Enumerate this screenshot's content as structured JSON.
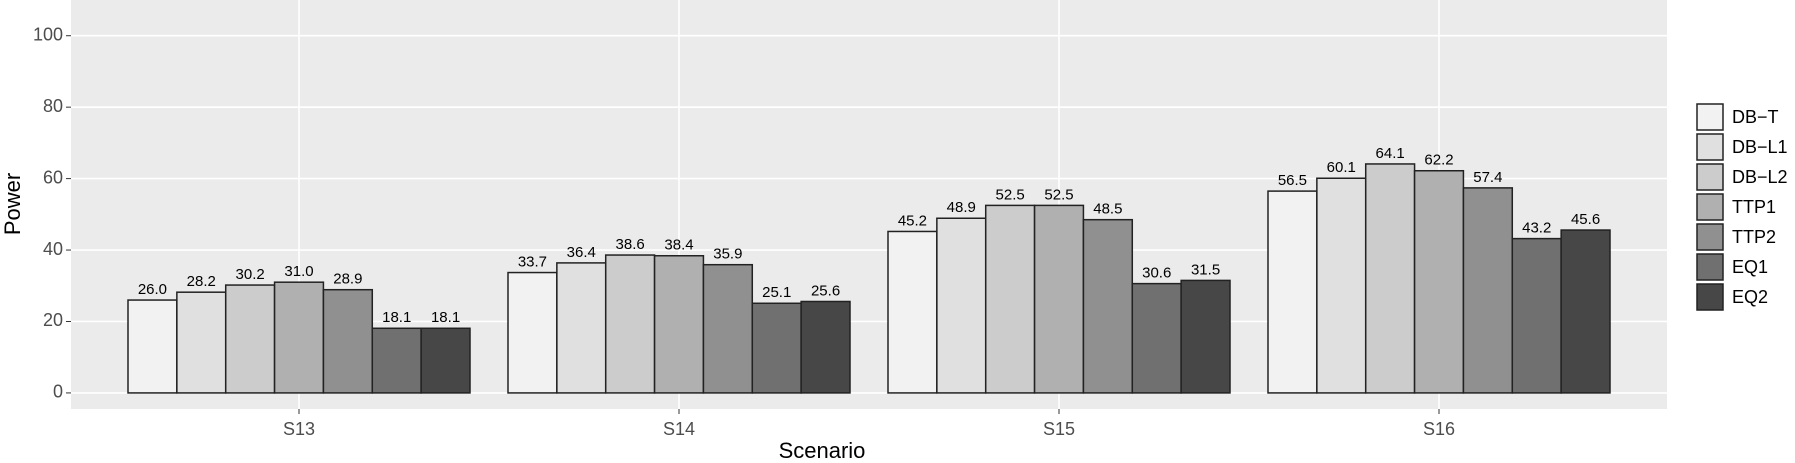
{
  "chart_data": {
    "type": "bar",
    "x_label": "Scenario",
    "y_label": "Power",
    "categories": [
      "S13",
      "S14",
      "S15",
      "S16"
    ],
    "series": [
      {
        "name": "DB−T",
        "color": "#f2f2f2",
        "values": [
          26.0,
          33.7,
          45.2,
          56.5
        ],
        "value_labels": [
          "26.0",
          "33.7",
          "45.2",
          "56.5"
        ]
      },
      {
        "name": "DB−L1",
        "color": "#e0e0e0",
        "values": [
          28.2,
          36.4,
          48.9,
          60.1
        ],
        "value_labels": [
          "28.2",
          "36.4",
          "48.9",
          "60.1"
        ]
      },
      {
        "name": "DB−L2",
        "color": "#cccccc",
        "values": [
          30.2,
          38.6,
          52.5,
          64.1
        ],
        "value_labels": [
          "30.2",
          "38.6",
          "52.5",
          "64.1"
        ]
      },
      {
        "name": "TTP1",
        "color": "#b0b0b0",
        "values": [
          31.0,
          38.4,
          52.5,
          62.2
        ],
        "value_labels": [
          "31.0",
          "38.4",
          "52.5",
          "62.2"
        ]
      },
      {
        "name": "TTP2",
        "color": "#909090",
        "values": [
          28.9,
          35.9,
          48.5,
          57.4
        ],
        "value_labels": [
          "28.9",
          "35.9",
          "48.5",
          "57.4"
        ]
      },
      {
        "name": "EQ1",
        "color": "#707070",
        "values": [
          18.1,
          25.1,
          30.6,
          43.2
        ],
        "value_labels": [
          "18.1",
          "25.1",
          "30.6",
          "43.2"
        ]
      },
      {
        "name": "EQ2",
        "color": "#474747",
        "values": [
          18.1,
          25.6,
          31.5,
          45.6
        ],
        "value_labels": [
          "18.1",
          "25.6",
          "31.5",
          "45.6"
        ]
      }
    ],
    "ylim": [
      -4.5,
      110
    ],
    "yticks": [
      0,
      20,
      40,
      60,
      80,
      100
    ],
    "grid": true,
    "legend": "right"
  }
}
